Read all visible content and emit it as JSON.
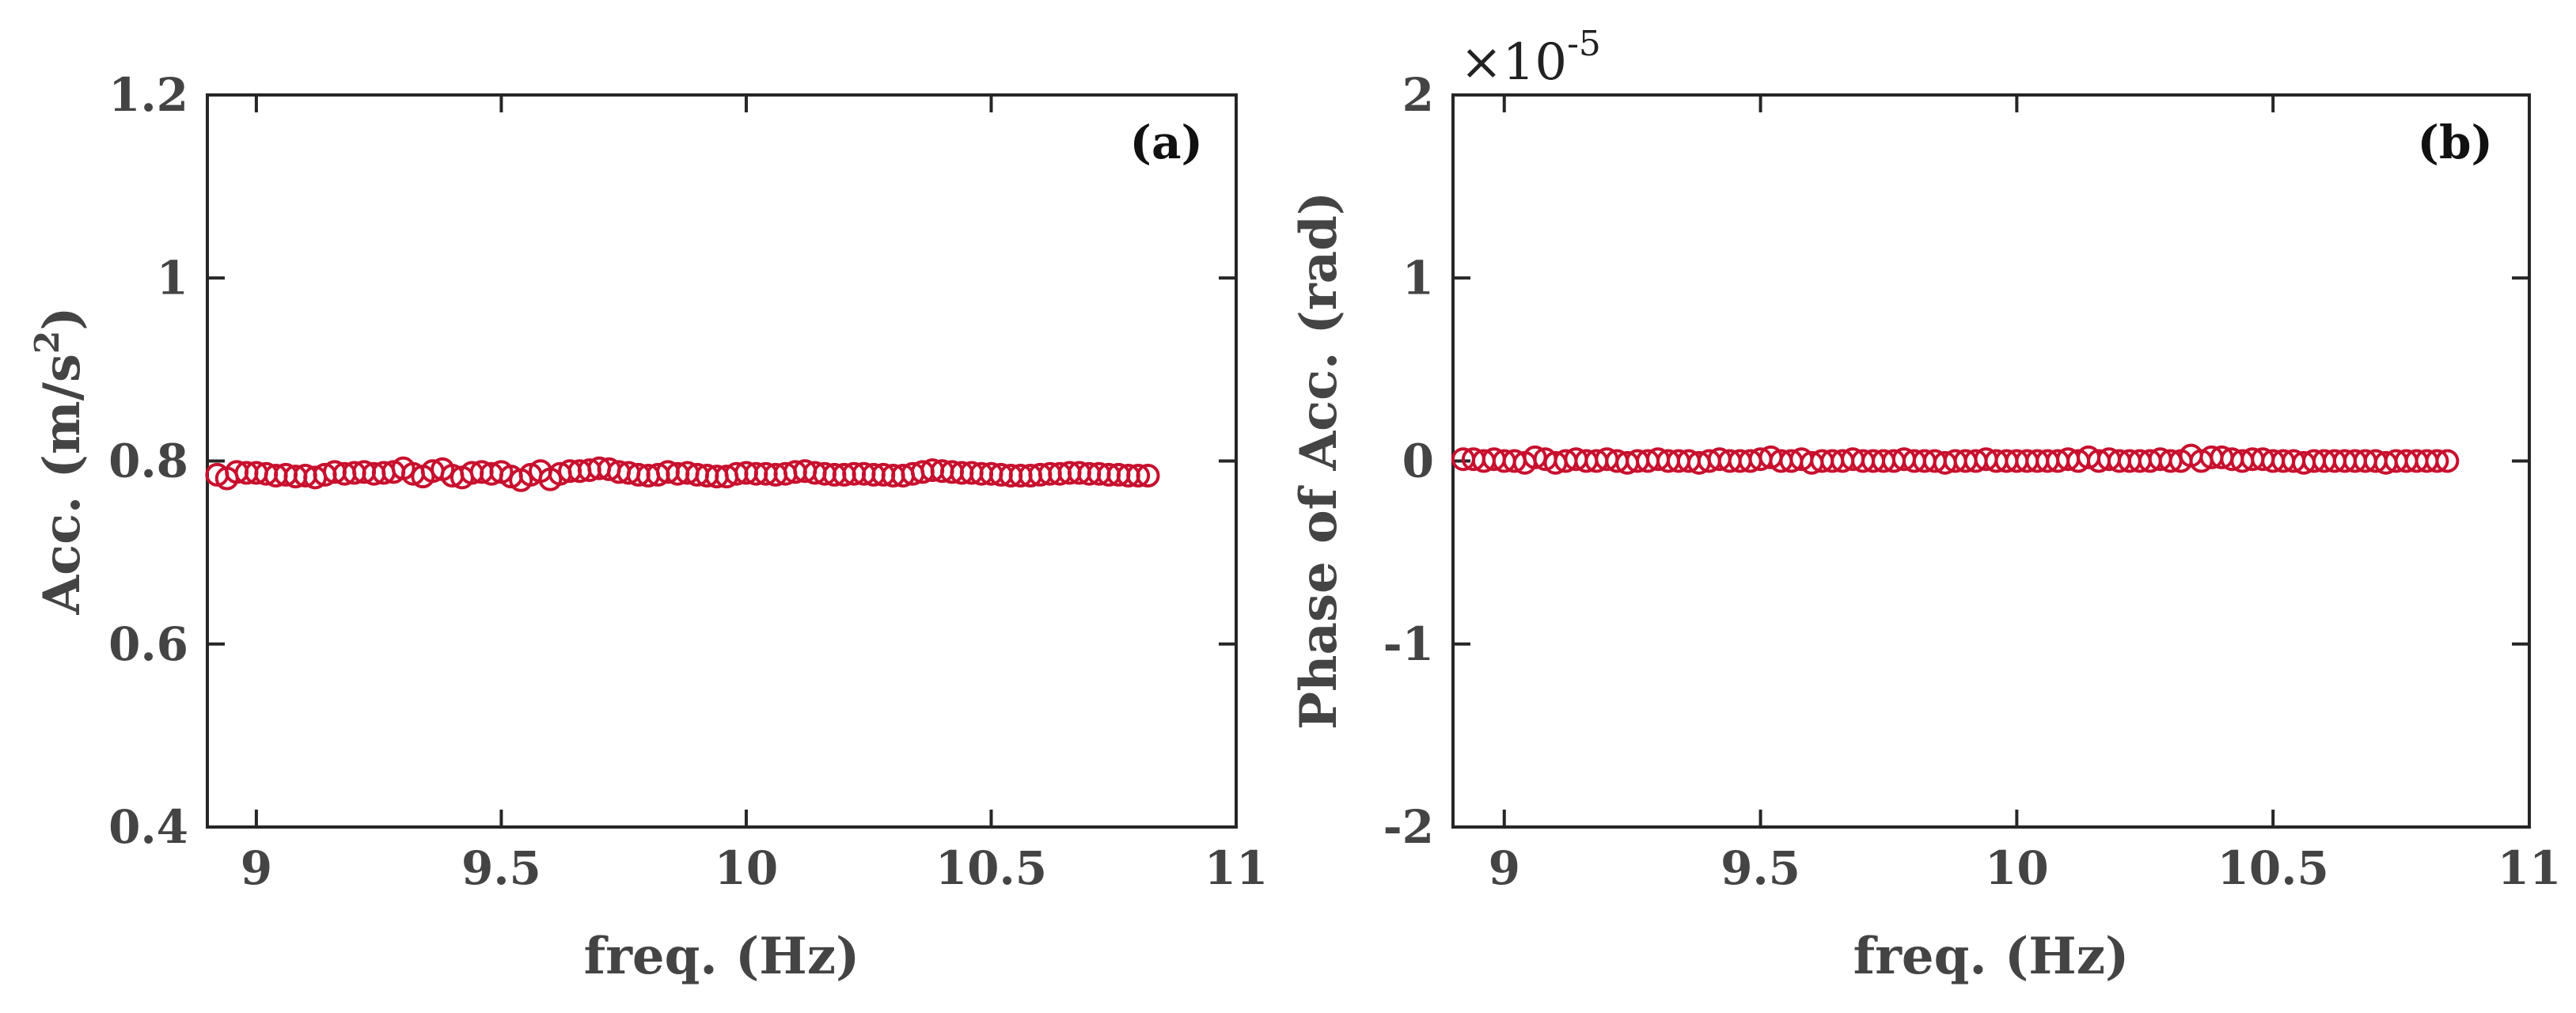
{
  "chart_data": [
    {
      "type": "scatter",
      "panel_label": "(a)",
      "xlabel": "freq. (Hz)",
      "ylabel_main": "Acc. (m/s",
      "ylabel_sup": "2",
      "ylabel_end": ")",
      "xlim": [
        8.9,
        11
      ],
      "ylim": [
        0.4,
        1.2
      ],
      "xticks": [
        9,
        9.5,
        10,
        10.5,
        11
      ],
      "xtick_labels": [
        "9",
        "9.5",
        "10",
        "10.5",
        "11"
      ],
      "yticks": [
        0.4,
        0.6,
        0.8,
        1.0,
        1.2
      ],
      "ytick_labels": [
        "0.4",
        "0.6",
        "0.8",
        "1",
        "1.2"
      ],
      "marker_color": "#c8102e",
      "series": [
        {
          "name": "Acc.",
          "x_start": 8.92,
          "x_step": 0.02,
          "values": [
            0.785,
            0.781,
            0.788,
            0.787,
            0.787,
            0.786,
            0.784,
            0.785,
            0.783,
            0.784,
            0.782,
            0.785,
            0.788,
            0.786,
            0.787,
            0.788,
            0.786,
            0.787,
            0.788,
            0.792,
            0.786,
            0.783,
            0.789,
            0.791,
            0.784,
            0.782,
            0.787,
            0.788,
            0.786,
            0.788,
            0.783,
            0.779,
            0.785,
            0.789,
            0.78,
            0.786,
            0.789,
            0.789,
            0.79,
            0.792,
            0.791,
            0.788,
            0.787,
            0.785,
            0.784,
            0.785,
            0.788,
            0.786,
            0.787,
            0.785,
            0.784,
            0.783,
            0.783,
            0.786,
            0.787,
            0.786,
            0.786,
            0.785,
            0.786,
            0.788,
            0.789,
            0.787,
            0.786,
            0.785,
            0.785,
            0.786,
            0.786,
            0.785,
            0.785,
            0.784,
            0.784,
            0.786,
            0.788,
            0.79,
            0.789,
            0.788,
            0.787,
            0.787,
            0.786,
            0.786,
            0.785,
            0.784,
            0.784,
            0.784,
            0.785,
            0.786,
            0.786,
            0.787,
            0.787,
            0.786,
            0.786,
            0.785,
            0.785,
            0.784,
            0.784,
            0.784
          ]
        }
      ]
    },
    {
      "type": "scatter",
      "panel_label": "(b)",
      "xlabel": "freq. (Hz)",
      "ylabel": "Phase of Acc. (rad)",
      "multiplier_base": "×10",
      "multiplier_exp": "-5",
      "xlim": [
        8.9,
        11
      ],
      "ylim": [
        -2,
        2
      ],
      "xticks": [
        9,
        9.5,
        10,
        10.5,
        11
      ],
      "xtick_labels": [
        "9",
        "9.5",
        "10",
        "10.5",
        "11"
      ],
      "yticks": [
        -2,
        -1,
        0,
        1,
        2
      ],
      "ytick_labels": [
        "-2",
        "-1",
        "0",
        "1",
        "2"
      ],
      "marker_color": "#c8102e",
      "series": [
        {
          "name": "Phase of Acc.",
          "x_start": 8.92,
          "x_step": 0.02,
          "values": [
            0.01,
            0.01,
            0.0,
            0.01,
            0.0,
            0.0,
            -0.01,
            0.02,
            0.01,
            -0.01,
            0.0,
            0.01,
            0.0,
            0.0,
            0.01,
            0.0,
            -0.01,
            0.0,
            0.0,
            0.01,
            0.0,
            0.0,
            0.0,
            -0.01,
            0.0,
            0.01,
            0.0,
            0.0,
            0.0,
            0.01,
            0.02,
            0.0,
            0.0,
            0.01,
            -0.01,
            0.0,
            0.0,
            0.0,
            0.01,
            0.0,
            0.0,
            0.0,
            0.0,
            0.01,
            0.0,
            0.0,
            0.0,
            -0.01,
            0.0,
            0.0,
            0.0,
            0.01,
            0.0,
            0.0,
            0.0,
            0.0,
            0.0,
            0.0,
            0.0,
            0.01,
            0.0,
            0.02,
            0.0,
            0.01,
            0.0,
            0.0,
            0.0,
            0.0,
            0.01,
            0.0,
            0.0,
            0.03,
            0.0,
            0.02,
            0.02,
            0.01,
            0.0,
            0.01,
            0.01,
            0.0,
            0.0,
            0.0,
            -0.01,
            0.0,
            0.0,
            0.0,
            0.0,
            0.0,
            0.0,
            0.0,
            -0.01,
            0.0,
            0.0,
            0.0,
            0.0,
            0.0,
            0.0
          ]
        }
      ]
    }
  ]
}
